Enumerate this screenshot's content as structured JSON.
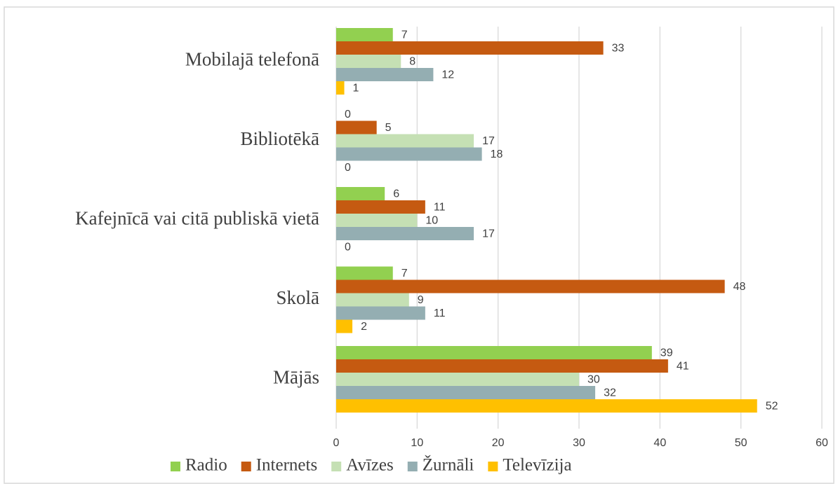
{
  "chart_data": {
    "type": "bar",
    "orientation": "horizontal",
    "categories": [
      "Mobilajā telefonā",
      "Bibliotēkā",
      "Kafejnīcā vai citā  publiskā vietā",
      "Skolā",
      "Mājās"
    ],
    "series": [
      {
        "name": "Radio",
        "color": "#92d050",
        "values": [
          7,
          0,
          6,
          7,
          39
        ]
      },
      {
        "name": "Internets",
        "color": "#c55a11",
        "values": [
          33,
          5,
          11,
          48,
          41
        ]
      },
      {
        "name": "Avīzes",
        "color": "#c5e0b4",
        "values": [
          8,
          17,
          10,
          9,
          30
        ]
      },
      {
        "name": "Žurnāli",
        "color": "#94aeb2",
        "values": [
          12,
          18,
          17,
          11,
          32
        ]
      },
      {
        "name": "Televīzija",
        "color": "#ffc000",
        "values": [
          1,
          0,
          0,
          2,
          52
        ]
      }
    ],
    "xlim": [
      0,
      60
    ],
    "xticks": [
      0,
      10,
      20,
      30,
      40,
      50,
      60
    ],
    "grid": true,
    "legend": "bottom"
  }
}
